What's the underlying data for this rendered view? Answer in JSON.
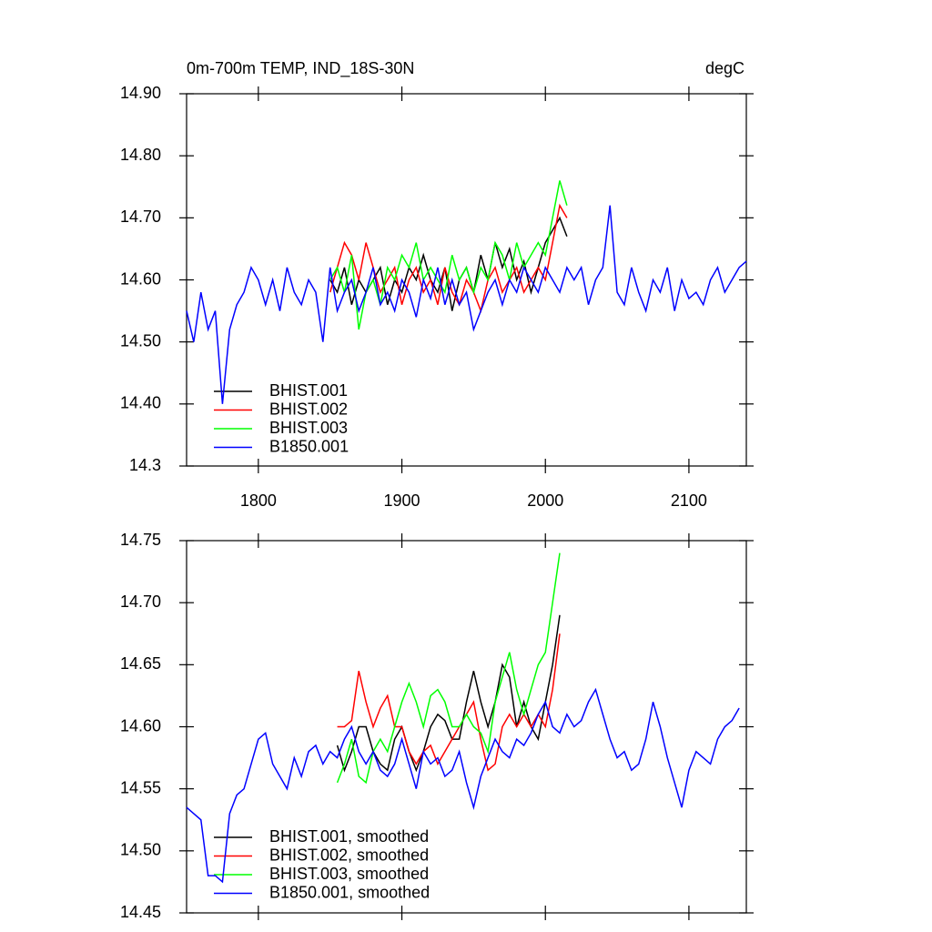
{
  "chart_data": [
    {
      "type": "line",
      "title": "0m-700m TEMP, IND_18S-30N",
      "units": "degC",
      "xlim": [
        1750,
        2140
      ],
      "xticks": [
        1800,
        1900,
        2000,
        2100
      ],
      "show_xtick_labels": true,
      "ylim": [
        14.3,
        14.9
      ],
      "yticks": [
        14.3,
        {
          "value": 14.4,
          "label": "14.40"
        },
        {
          "value": 14.5,
          "label": "14.50"
        },
        {
          "value": 14.6,
          "label": "14.60"
        },
        {
          "value": 14.7,
          "label": "14.70"
        },
        {
          "value": 14.8,
          "label": "14.80"
        },
        {
          "value": 14.9,
          "label": "14.90"
        }
      ],
      "series": [
        {
          "name": "BHIST.001",
          "color": "#000000",
          "x": [
            1850,
            1855,
            1860,
            1865,
            1870,
            1875,
            1880,
            1885,
            1890,
            1895,
            1900,
            1905,
            1910,
            1915,
            1920,
            1925,
            1930,
            1935,
            1940,
            1945,
            1950,
            1955,
            1960,
            1965,
            1970,
            1975,
            1980,
            1985,
            1990,
            1995,
            2000,
            2005,
            2010,
            2015
          ],
          "values": [
            14.6,
            14.58,
            14.62,
            14.56,
            14.6,
            14.58,
            14.6,
            14.62,
            14.56,
            14.6,
            14.58,
            14.62,
            14.6,
            14.64,
            14.6,
            14.58,
            14.62,
            14.55,
            14.6,
            14.62,
            14.58,
            14.64,
            14.6,
            14.66,
            14.62,
            14.65,
            14.6,
            14.63,
            14.58,
            14.62,
            14.66,
            14.68,
            14.7,
            14.67
          ]
        },
        {
          "name": "BHIST.002",
          "color": "#ff0000",
          "x": [
            1850,
            1855,
            1860,
            1865,
            1870,
            1875,
            1880,
            1885,
            1890,
            1895,
            1900,
            1905,
            1910,
            1915,
            1920,
            1925,
            1930,
            1935,
            1940,
            1945,
            1950,
            1955,
            1960,
            1965,
            1970,
            1975,
            1980,
            1985,
            1990,
            1995,
            2000,
            2005,
            2010,
            2015
          ],
          "values": [
            14.58,
            14.62,
            14.66,
            14.64,
            14.6,
            14.66,
            14.62,
            14.58,
            14.6,
            14.62,
            14.56,
            14.6,
            14.62,
            14.58,
            14.6,
            14.56,
            14.62,
            14.58,
            14.56,
            14.6,
            14.58,
            14.55,
            14.6,
            14.62,
            14.58,
            14.6,
            14.62,
            14.58,
            14.6,
            14.62,
            14.6,
            14.66,
            14.72,
            14.7
          ]
        },
        {
          "name": "BHIST.003",
          "color": "#00ff00",
          "x": [
            1850,
            1855,
            1860,
            1865,
            1870,
            1875,
            1880,
            1885,
            1890,
            1895,
            1900,
            1905,
            1910,
            1915,
            1920,
            1925,
            1930,
            1935,
            1940,
            1945,
            1950,
            1955,
            1960,
            1965,
            1970,
            1975,
            1980,
            1985,
            1990,
            1995,
            2000,
            2005,
            2010,
            2015
          ],
          "values": [
            14.6,
            14.62,
            14.58,
            14.64,
            14.52,
            14.58,
            14.6,
            14.56,
            14.62,
            14.6,
            14.64,
            14.62,
            14.66,
            14.6,
            14.62,
            14.6,
            14.58,
            14.64,
            14.6,
            14.62,
            14.58,
            14.62,
            14.6,
            14.66,
            14.64,
            14.6,
            14.66,
            14.62,
            14.64,
            14.66,
            14.64,
            14.7,
            14.76,
            14.72
          ]
        },
        {
          "name": "B1850.001",
          "color": "#0000ff",
          "x": [
            1750,
            1755,
            1760,
            1765,
            1770,
            1775,
            1780,
            1785,
            1790,
            1795,
            1800,
            1805,
            1810,
            1815,
            1820,
            1825,
            1830,
            1835,
            1840,
            1845,
            1850,
            1855,
            1860,
            1865,
            1870,
            1875,
            1880,
            1885,
            1890,
            1895,
            1900,
            1905,
            1910,
            1915,
            1920,
            1925,
            1930,
            1935,
            1940,
            1945,
            1950,
            1955,
            1960,
            1965,
            1970,
            1975,
            1980,
            1985,
            1990,
            1995,
            2000,
            2005,
            2010,
            2015,
            2020,
            2025,
            2030,
            2035,
            2040,
            2045,
            2050,
            2055,
            2060,
            2065,
            2070,
            2075,
            2080,
            2085,
            2090,
            2095,
            2100,
            2105,
            2110,
            2115,
            2120,
            2125,
            2130,
            2135,
            2140
          ],
          "values": [
            14.55,
            14.5,
            14.58,
            14.52,
            14.55,
            14.4,
            14.52,
            14.56,
            14.58,
            14.62,
            14.6,
            14.56,
            14.6,
            14.55,
            14.62,
            14.58,
            14.56,
            14.6,
            14.58,
            14.5,
            14.62,
            14.55,
            14.58,
            14.6,
            14.55,
            14.58,
            14.62,
            14.56,
            14.58,
            14.55,
            14.6,
            14.58,
            14.54,
            14.6,
            14.57,
            14.62,
            14.56,
            14.6,
            14.56,
            14.58,
            14.52,
            14.55,
            14.58,
            14.6,
            14.56,
            14.6,
            14.58,
            14.62,
            14.6,
            14.58,
            14.62,
            14.6,
            14.58,
            14.62,
            14.6,
            14.62,
            14.56,
            14.6,
            14.62,
            14.72,
            14.58,
            14.56,
            14.62,
            14.58,
            14.55,
            14.6,
            14.58,
            14.62,
            14.55,
            14.6,
            14.57,
            14.58,
            14.56,
            14.6,
            14.62,
            14.58,
            14.6,
            14.62,
            14.63
          ]
        }
      ]
    },
    {
      "type": "line",
      "xlim": [
        1750,
        2140
      ],
      "xticks": [
        1800,
        1900,
        2000,
        2100
      ],
      "show_xtick_labels": false,
      "ylim": [
        14.45,
        14.75
      ],
      "yticks": [
        14.45,
        {
          "value": 14.5,
          "label": "14.50"
        },
        14.55,
        {
          "value": 14.6,
          "label": "14.60"
        },
        14.65,
        {
          "value": 14.7,
          "label": "14.70"
        },
        14.75
      ],
      "series": [
        {
          "name": "BHIST.001, smoothed",
          "color": "#000000",
          "x": [
            1855,
            1860,
            1865,
            1870,
            1875,
            1880,
            1885,
            1890,
            1895,
            1900,
            1905,
            1910,
            1915,
            1920,
            1925,
            1930,
            1935,
            1940,
            1945,
            1950,
            1955,
            1960,
            1965,
            1970,
            1975,
            1980,
            1985,
            1990,
            1995,
            2000,
            2005,
            2010
          ],
          "values": [
            14.585,
            14.565,
            14.58,
            14.6,
            14.6,
            14.58,
            14.57,
            14.565,
            14.59,
            14.6,
            14.58,
            14.565,
            14.58,
            14.6,
            14.61,
            14.605,
            14.59,
            14.59,
            14.62,
            14.645,
            14.62,
            14.6,
            14.62,
            14.65,
            14.64,
            14.6,
            14.62,
            14.6,
            14.59,
            14.62,
            14.65,
            14.69
          ]
        },
        {
          "name": "BHIST.002, smoothed",
          "color": "#ff0000",
          "x": [
            1855,
            1860,
            1865,
            1870,
            1875,
            1880,
            1885,
            1890,
            1895,
            1900,
            1905,
            1910,
            1915,
            1920,
            1925,
            1930,
            1935,
            1940,
            1945,
            1950,
            1955,
            1960,
            1965,
            1970,
            1975,
            1980,
            1985,
            1990,
            1995,
            2000,
            2005,
            2010
          ],
          "values": [
            14.6,
            14.6,
            14.605,
            14.645,
            14.62,
            14.6,
            14.615,
            14.625,
            14.6,
            14.6,
            14.58,
            14.57,
            14.58,
            14.585,
            14.57,
            14.58,
            14.59,
            14.6,
            14.61,
            14.62,
            14.59,
            14.565,
            14.57,
            14.6,
            14.61,
            14.6,
            14.61,
            14.6,
            14.61,
            14.6,
            14.63,
            14.675
          ]
        },
        {
          "name": "BHIST.003, smoothed",
          "color": "#00ff00",
          "x": [
            1855,
            1860,
            1865,
            1870,
            1875,
            1880,
            1885,
            1890,
            1895,
            1900,
            1905,
            1910,
            1915,
            1920,
            1925,
            1930,
            1935,
            1940,
            1945,
            1950,
            1955,
            1960,
            1965,
            1970,
            1975,
            1980,
            1985,
            1990,
            1995,
            2000,
            2005,
            2010
          ],
          "values": [
            14.555,
            14.57,
            14.59,
            14.56,
            14.555,
            14.58,
            14.59,
            14.58,
            14.6,
            14.62,
            14.635,
            14.62,
            14.6,
            14.625,
            14.63,
            14.62,
            14.6,
            14.6,
            14.61,
            14.6,
            14.595,
            14.58,
            14.62,
            14.64,
            14.66,
            14.63,
            14.61,
            14.63,
            14.65,
            14.66,
            14.7,
            14.74
          ]
        },
        {
          "name": "B1850.001, smoothed",
          "color": "#0000ff",
          "x": [
            1750,
            1755,
            1760,
            1765,
            1770,
            1775,
            1780,
            1785,
            1790,
            1795,
            1800,
            1805,
            1810,
            1815,
            1820,
            1825,
            1830,
            1835,
            1840,
            1845,
            1850,
            1855,
            1860,
            1865,
            1870,
            1875,
            1880,
            1885,
            1890,
            1895,
            1900,
            1905,
            1910,
            1915,
            1920,
            1925,
            1930,
            1935,
            1940,
            1945,
            1950,
            1955,
            1960,
            1965,
            1970,
            1975,
            1980,
            1985,
            1990,
            1995,
            2000,
            2005,
            2010,
            2015,
            2020,
            2025,
            2030,
            2035,
            2040,
            2045,
            2050,
            2055,
            2060,
            2065,
            2070,
            2075,
            2080,
            2085,
            2090,
            2095,
            2100,
            2105,
            2110,
            2115,
            2120,
            2125,
            2130,
            2135
          ],
          "values": [
            14.535,
            14.53,
            14.525,
            14.48,
            14.48,
            14.475,
            14.53,
            14.545,
            14.55,
            14.57,
            14.59,
            14.595,
            14.57,
            14.56,
            14.55,
            14.575,
            14.56,
            14.58,
            14.585,
            14.57,
            14.58,
            14.575,
            14.59,
            14.6,
            14.58,
            14.57,
            14.58,
            14.565,
            14.56,
            14.57,
            14.59,
            14.57,
            14.55,
            14.58,
            14.57,
            14.575,
            14.56,
            14.565,
            14.58,
            14.555,
            14.535,
            14.56,
            14.575,
            14.59,
            14.58,
            14.575,
            14.59,
            14.585,
            14.595,
            14.61,
            14.62,
            14.6,
            14.595,
            14.61,
            14.6,
            14.605,
            14.62,
            14.63,
            14.61,
            14.59,
            14.575,
            14.58,
            14.565,
            14.57,
            14.59,
            14.62,
            14.6,
            14.575,
            14.555,
            14.535,
            14.565,
            14.58,
            14.575,
            14.57,
            14.59,
            14.6,
            14.605,
            14.615
          ]
        }
      ]
    }
  ]
}
